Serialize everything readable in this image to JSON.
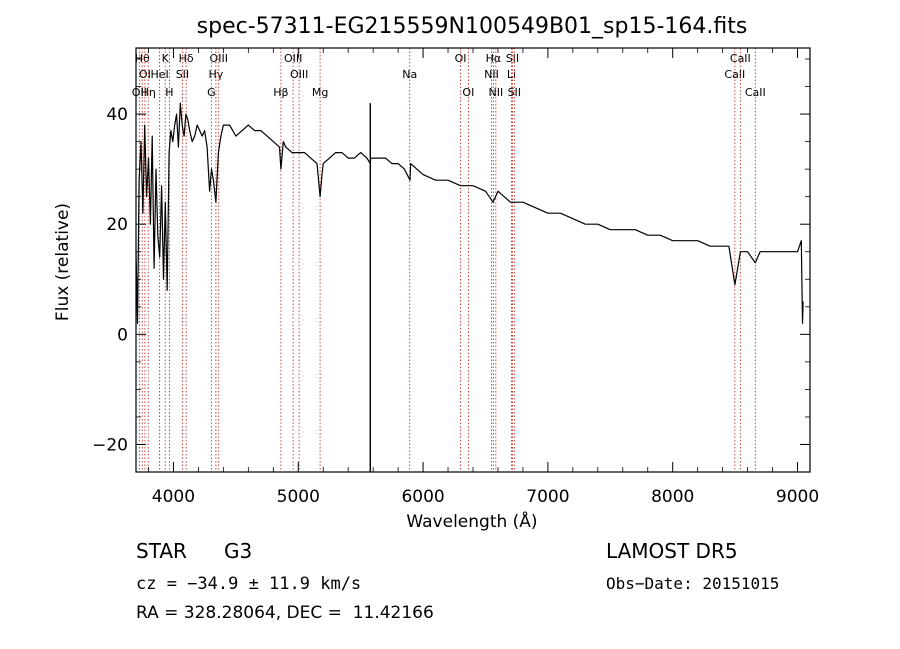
{
  "title": "spec-57311-EG215559N100549B01_sp15-164.fits",
  "chart_data": {
    "type": "line",
    "xlabel": "Wavelength (Å)",
    "ylabel": "Flux (relative)",
    "xlim": [
      3700,
      9100
    ],
    "ylim": [
      -25,
      52
    ],
    "x_ticks": [
      4000,
      5000,
      6000,
      7000,
      8000,
      9000
    ],
    "y_ticks": [
      -20,
      0,
      20,
      40
    ],
    "series": [
      {
        "x": [
          3700,
          3712,
          3725,
          3740,
          3755,
          3770,
          3785,
          3800,
          3815,
          3830,
          3845,
          3860,
          3875,
          3890,
          3905,
          3920,
          3935,
          3950,
          3965,
          3980,
          3995,
          4010,
          4025,
          4040,
          4055,
          4070,
          4085,
          4100,
          4115,
          4130,
          4150,
          4170,
          4190,
          4210,
          4230,
          4250,
          4270,
          4290,
          4305,
          4320,
          4340,
          4360,
          4380,
          4400,
          4450,
          4500,
          4550,
          4600,
          4650,
          4700,
          4750,
          4800,
          4850,
          4861,
          4880,
          4900,
          4950,
          5000,
          5050,
          5100,
          5150,
          5175,
          5190,
          5200,
          5250,
          5300,
          5350,
          5400,
          5450,
          5500,
          5550,
          5577,
          5580,
          5600,
          5650,
          5700,
          5750,
          5800,
          5850,
          5895,
          5900,
          5950,
          6000,
          6100,
          6200,
          6300,
          6400,
          6500,
          6560,
          6600,
          6650,
          6700,
          6800,
          6900,
          7000,
          7100,
          7200,
          7300,
          7400,
          7500,
          7600,
          7700,
          7800,
          7900,
          8000,
          8100,
          8200,
          8300,
          8400,
          8450,
          8498,
          8542,
          8600,
          8662,
          8700,
          8800,
          8900,
          9000,
          9030,
          9040,
          9045
        ],
        "y": [
          15,
          2,
          28,
          35,
          22,
          38,
          25,
          32,
          20,
          36,
          12,
          30,
          18,
          14,
          27,
          10,
          24,
          8,
          33,
          37,
          35,
          38,
          40,
          34,
          42,
          38,
          36,
          40,
          39,
          37,
          35,
          36,
          38,
          37,
          36,
          37,
          34,
          26,
          30,
          28,
          24,
          33,
          36,
          38,
          38,
          36,
          37,
          38,
          37,
          37,
          36,
          35,
          34,
          30,
          35,
          34,
          33,
          33,
          33,
          32,
          31,
          25,
          29,
          31,
          32,
          33,
          33,
          32,
          32,
          33,
          32,
          31,
          32,
          32,
          32,
          32,
          31,
          31,
          30,
          28,
          31,
          30,
          29,
          28,
          28,
          27,
          27,
          26,
          24,
          26,
          25,
          24,
          24,
          23,
          22,
          22,
          21,
          20,
          20,
          19,
          19,
          19,
          18,
          18,
          17,
          17,
          17,
          16,
          16,
          16,
          9,
          15,
          15,
          13,
          15,
          15,
          15,
          15,
          17,
          2,
          6
        ]
      }
    ],
    "spike_x": 5577,
    "spike_y": [
      -25,
      42
    ],
    "lines": [
      {
        "x": 3727,
        "label": "OII",
        "row": 3
      },
      {
        "x": 3750,
        "label": "Hθ",
        "row": 1
      },
      {
        "x": 3771,
        "label": "OI",
        "row": 2
      },
      {
        "x": 3798,
        "label": "Hη",
        "row": 3
      },
      {
        "x": 3889,
        "label": "HeI",
        "row": 2
      },
      {
        "x": 3934,
        "label": "K",
        "row": 1
      },
      {
        "x": 3968,
        "label": "H",
        "row": 3
      },
      {
        "x": 4072,
        "label": "SII",
        "row": 2
      },
      {
        "x": 4102,
        "label": "Hδ",
        "row": 1
      },
      {
        "x": 4340,
        "label": "Hγ",
        "row": 2
      },
      {
        "x": 4363,
        "label": "OIII",
        "row": 1
      },
      {
        "x": 4304,
        "label": "G",
        "row": 3
      },
      {
        "x": 4861,
        "label": "Hβ",
        "row": 3
      },
      {
        "x": 4959,
        "label": "OIII",
        "row": 1
      },
      {
        "x": 5007,
        "label": "OIII",
        "row": 2
      },
      {
        "x": 5175,
        "label": "Mg",
        "row": 3
      },
      {
        "x": 5893,
        "label": "Na",
        "row": 2
      },
      {
        "x": 6300,
        "label": "OI",
        "row": 1
      },
      {
        "x": 6363,
        "label": "OI",
        "row": 3
      },
      {
        "x": 6548,
        "label": "NII",
        "row": 2
      },
      {
        "x": 6563,
        "label": "Hα",
        "row": 1
      },
      {
        "x": 6583,
        "label": "NII",
        "row": 3
      },
      {
        "x": 6708,
        "label": "Li",
        "row": 2
      },
      {
        "x": 6716,
        "label": "SII",
        "row": 1
      },
      {
        "x": 6731,
        "label": "SII",
        "row": 3
      },
      {
        "x": 8498,
        "label": "CaII",
        "row": 2
      },
      {
        "x": 8542,
        "label": "CaII",
        "row": 1
      },
      {
        "x": 8662,
        "label": "CaII",
        "row": 3
      }
    ]
  },
  "info": {
    "class_label": "STAR",
    "subclass": "G3",
    "survey": "LAMOST DR5",
    "cz": "cz = −34.9 ± 11.9 km/s",
    "obs_date": "Obs−Date: 20151015",
    "coords": "RA = 328.28064, DEC =  11.42166"
  }
}
